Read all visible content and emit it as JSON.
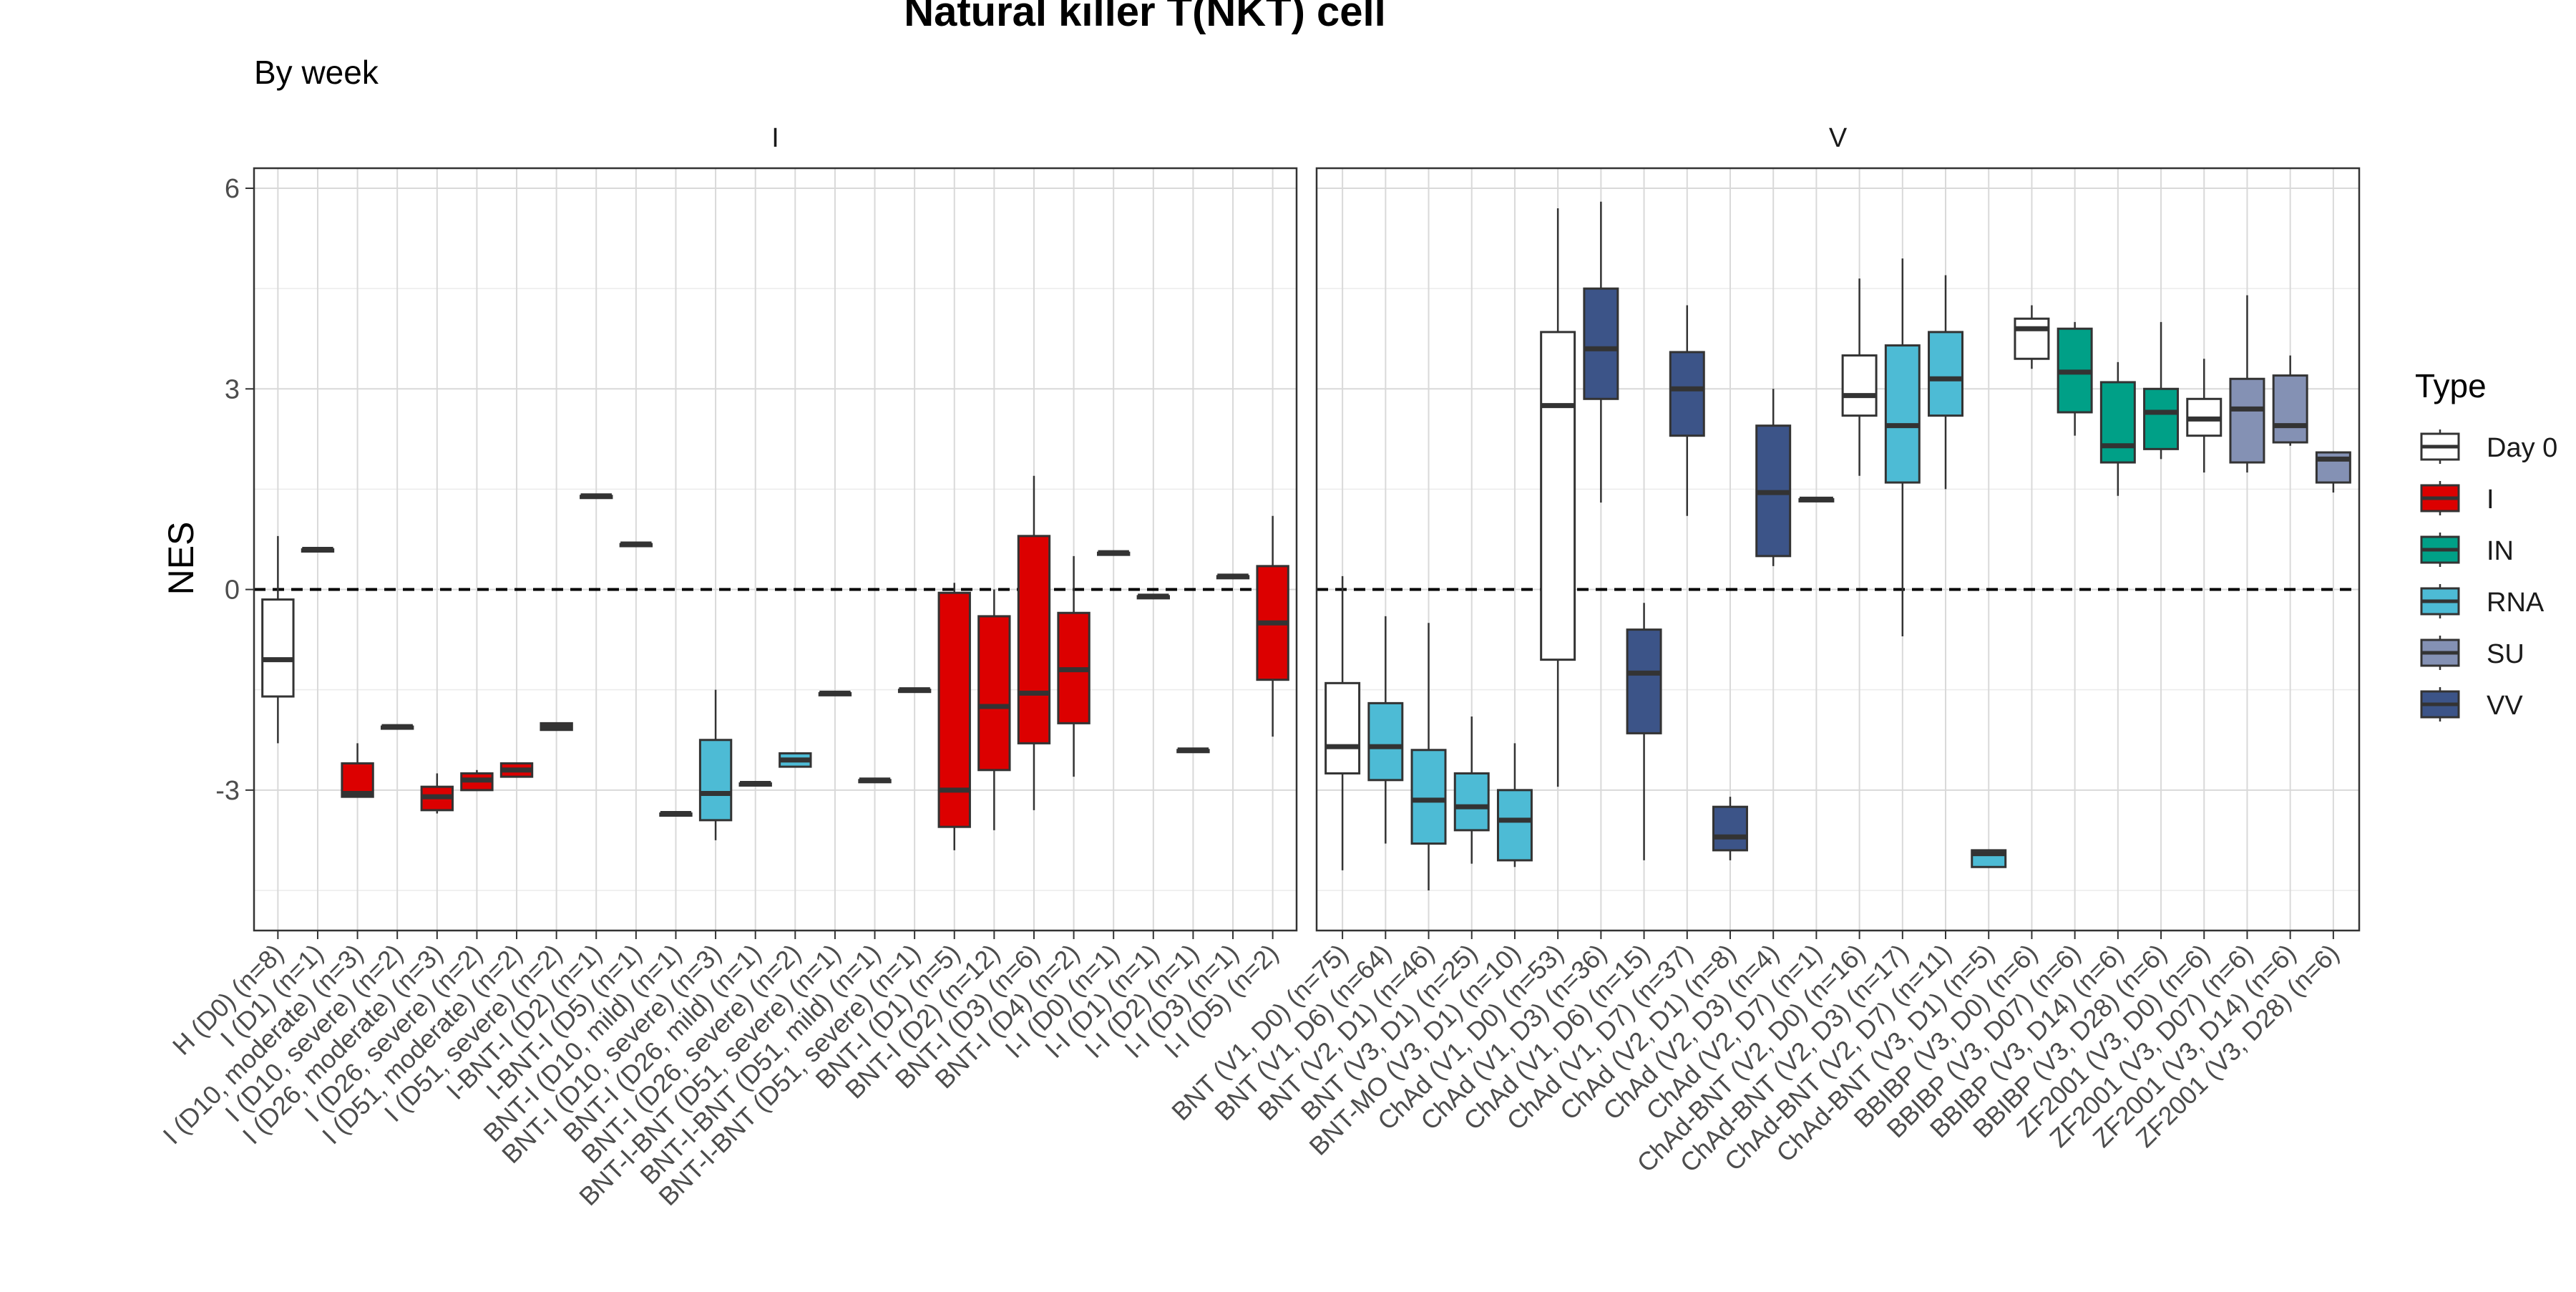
{
  "chart_data": {
    "type": "box",
    "title": "Natural killer T(NKT) cell",
    "subtitle": "By week",
    "ylabel": "NES",
    "xlabel": "",
    "ylim": [
      -5.1,
      6.3
    ],
    "yticks": [
      6,
      3,
      0,
      -3
    ],
    "yticklabels": [
      "6",
      "3",
      "0",
      "-3"
    ],
    "reference_line": 0,
    "grid": true,
    "legend": {
      "title": "Type",
      "position": "right",
      "items": [
        {
          "label": "Day 0",
          "color": "#ffffff"
        },
        {
          "label": "I",
          "color": "#dc0000"
        },
        {
          "label": "IN",
          "color": "#00a087"
        },
        {
          "label": "RNA",
          "color": "#4dbbd5"
        },
        {
          "label": "SU",
          "color": "#8491b4"
        },
        {
          "label": "VV",
          "color": "#3c5488"
        }
      ]
    },
    "panels": [
      {
        "name": "I",
        "boxes": [
          {
            "label": "H (D0) (n=8)",
            "type": "Day 0",
            "q1": -1.6,
            "median": -1.05,
            "q3": -0.15,
            "lo": -2.3,
            "hi": 0.8
          },
          {
            "label": "I (D1) (n=1)",
            "type": "I",
            "q1": 0.6,
            "median": 0.6,
            "q3": 0.6,
            "lo": 0.6,
            "hi": 0.6
          },
          {
            "label": "I (D10, moderate) (n=3)",
            "type": "I",
            "q1": -3.1,
            "median": -3.05,
            "q3": -2.6,
            "lo": -3.1,
            "hi": -2.3
          },
          {
            "label": "I (D10, severe) (n=2)",
            "type": "I",
            "q1": -2.05,
            "median": -2.05,
            "q3": -2.05,
            "lo": -2.05,
            "hi": -2.05
          },
          {
            "label": "I (D26, moderate) (n=3)",
            "type": "I",
            "q1": -3.3,
            "median": -3.1,
            "q3": -2.95,
            "lo": -3.35,
            "hi": -2.75
          },
          {
            "label": "I (D26, severe) (n=2)",
            "type": "I",
            "q1": -3.0,
            "median": -2.85,
            "q3": -2.75,
            "lo": -3.0,
            "hi": -2.7
          },
          {
            "label": "I (D51, moderate) (n=2)",
            "type": "I",
            "q1": -2.8,
            "median": -2.7,
            "q3": -2.6,
            "lo": -2.8,
            "hi": -2.6
          },
          {
            "label": "I (D51, severe) (n=2)",
            "type": "I",
            "q1": -2.1,
            "median": -2.05,
            "q3": -2.0,
            "lo": -2.1,
            "hi": -2.0
          },
          {
            "label": "I-BNT-I (D2) (n=1)",
            "type": "I",
            "q1": 1.4,
            "median": 1.4,
            "q3": 1.4,
            "lo": 1.4,
            "hi": 1.4
          },
          {
            "label": "I-BNT-I (D5) (n=1)",
            "type": "I",
            "q1": 0.68,
            "median": 0.68,
            "q3": 0.68,
            "lo": 0.68,
            "hi": 0.68
          },
          {
            "label": "BNT-I (D10, mild) (n=1)",
            "type": "RNA",
            "q1": -3.35,
            "median": -3.35,
            "q3": -3.35,
            "lo": -3.35,
            "hi": -3.35
          },
          {
            "label": "BNT-I (D10, severe) (n=3)",
            "type": "RNA",
            "q1": -3.45,
            "median": -3.05,
            "q3": -2.25,
            "lo": -3.75,
            "hi": -1.5
          },
          {
            "label": "BNT-I (D26, mild) (n=1)",
            "type": "RNA",
            "q1": -2.9,
            "median": -2.9,
            "q3": -2.9,
            "lo": -2.9,
            "hi": -2.9
          },
          {
            "label": "BNT-I (D26, severe) (n=2)",
            "type": "RNA",
            "q1": -2.65,
            "median": -2.55,
            "q3": -2.45,
            "lo": -2.65,
            "hi": -2.45
          },
          {
            "label": "BNT-I-BNT (D51, severe) (n=1)",
            "type": "RNA",
            "q1": -1.55,
            "median": -1.55,
            "q3": -1.55,
            "lo": -1.55,
            "hi": -1.55
          },
          {
            "label": "BNT-I-BNT (D51, mild) (n=1)",
            "type": "RNA",
            "q1": -2.85,
            "median": -2.85,
            "q3": -2.85,
            "lo": -2.85,
            "hi": -2.85
          },
          {
            "label": "BNT-I-BNT (D51, severe) (n=1)",
            "type": "RNA",
            "q1": -1.5,
            "median": -1.5,
            "q3": -1.5,
            "lo": -1.5,
            "hi": -1.5
          },
          {
            "label": "BNT-I (D1) (n=5)",
            "type": "I",
            "q1": -3.55,
            "median": -3.0,
            "q3": -0.05,
            "lo": -3.9,
            "hi": 0.1
          },
          {
            "label": "BNT-I (D2) (n=12)",
            "type": "I",
            "q1": -2.7,
            "median": -1.75,
            "q3": -0.4,
            "lo": -3.6,
            "hi": 0.0
          },
          {
            "label": "BNT-I (D3) (n=6)",
            "type": "I",
            "q1": -2.3,
            "median": -1.55,
            "q3": 0.8,
            "lo": -3.3,
            "hi": 1.7
          },
          {
            "label": "BNT-I (D4) (n=2)",
            "type": "I",
            "q1": -2.0,
            "median": -1.2,
            "q3": -0.35,
            "lo": -2.8,
            "hi": 0.5
          },
          {
            "label": "I-I (D0) (n=1)",
            "type": "I",
            "q1": 0.55,
            "median": 0.55,
            "q3": 0.55,
            "lo": 0.55,
            "hi": 0.55
          },
          {
            "label": "I-I (D1) (n=1)",
            "type": "I",
            "q1": -0.1,
            "median": -0.1,
            "q3": -0.1,
            "lo": -0.1,
            "hi": -0.1
          },
          {
            "label": "I-I (D2) (n=1)",
            "type": "I",
            "q1": -2.4,
            "median": -2.4,
            "q3": -2.4,
            "lo": -2.4,
            "hi": -2.4
          },
          {
            "label": "I-I (D3) (n=1)",
            "type": "I",
            "q1": 0.2,
            "median": 0.2,
            "q3": 0.2,
            "lo": 0.2,
            "hi": 0.2
          },
          {
            "label": "I-I (D5) (n=2)",
            "type": "I",
            "q1": -1.35,
            "median": -0.5,
            "q3": 0.35,
            "lo": -2.2,
            "hi": 1.1
          }
        ]
      },
      {
        "name": "V",
        "boxes": [
          {
            "label": "BNT (V1, D0) (n=75)",
            "type": "Day 0",
            "q1": -2.75,
            "median": -2.35,
            "q3": -1.4,
            "lo": -4.2,
            "hi": 0.2
          },
          {
            "label": "BNT (V1, D6) (n=64)",
            "type": "RNA",
            "q1": -2.85,
            "median": -2.35,
            "q3": -1.7,
            "lo": -3.8,
            "hi": -0.4
          },
          {
            "label": "BNT (V2, D1) (n=46)",
            "type": "RNA",
            "q1": -3.8,
            "median": -3.15,
            "q3": -2.4,
            "lo": -4.5,
            "hi": -0.5
          },
          {
            "label": "BNT (V3, D1) (n=25)",
            "type": "RNA",
            "q1": -3.6,
            "median": -3.25,
            "q3": -2.75,
            "lo": -4.1,
            "hi": -1.9
          },
          {
            "label": "BNT-MO (V3, D1) (n=10)",
            "type": "RNA",
            "q1": -4.05,
            "median": -3.45,
            "q3": -3.0,
            "lo": -4.15,
            "hi": -2.3
          },
          {
            "label": "ChAd (V1, D0) (n=53)",
            "type": "Day 0",
            "q1": -1.05,
            "median": 2.75,
            "q3": 3.85,
            "lo": -2.95,
            "hi": 5.7
          },
          {
            "label": "ChAd (V1, D3) (n=36)",
            "type": "VV",
            "q1": 2.85,
            "median": 3.6,
            "q3": 4.5,
            "lo": 1.3,
            "hi": 5.8
          },
          {
            "label": "ChAd (V1, D6) (n=15)",
            "type": "VV",
            "q1": -2.15,
            "median": -1.25,
            "q3": -0.6,
            "lo": -4.05,
            "hi": -0.2
          },
          {
            "label": "ChAd (V1, D7) (n=37)",
            "type": "VV",
            "q1": 2.3,
            "median": 3.0,
            "q3": 3.55,
            "lo": 1.1,
            "hi": 4.25
          },
          {
            "label": "ChAd (V2, D1) (n=8)",
            "type": "VV",
            "q1": -3.9,
            "median": -3.7,
            "q3": -3.25,
            "lo": -4.05,
            "hi": -3.1
          },
          {
            "label": "ChAd (V2, D3) (n=4)",
            "type": "VV",
            "q1": 0.5,
            "median": 1.45,
            "q3": 2.45,
            "lo": 0.35,
            "hi": 3.0
          },
          {
            "label": "ChAd (V2, D7) (n=1)",
            "type": "VV",
            "q1": 1.35,
            "median": 1.35,
            "q3": 1.35,
            "lo": 1.35,
            "hi": 1.35
          },
          {
            "label": "ChAd-BNT (V2, D0) (n=16)",
            "type": "Day 0",
            "q1": 2.6,
            "median": 2.9,
            "q3": 3.5,
            "lo": 1.7,
            "hi": 4.65
          },
          {
            "label": "ChAd-BNT (V2, D3) (n=17)",
            "type": "RNA",
            "q1": 1.6,
            "median": 2.45,
            "q3": 3.65,
            "lo": -0.7,
            "hi": 4.95
          },
          {
            "label": "ChAd-BNT (V2, D7) (n=11)",
            "type": "RNA",
            "q1": 2.6,
            "median": 3.15,
            "q3": 3.85,
            "lo": 1.5,
            "hi": 4.7
          },
          {
            "label": "ChAd-BNT (V3, D1) (n=5)",
            "type": "RNA",
            "q1": -4.15,
            "median": -3.95,
            "q3": -3.9,
            "lo": -4.15,
            "hi": -3.9
          },
          {
            "label": "BBIBP (V3, D0) (n=6)",
            "type": "Day 0",
            "q1": 3.45,
            "median": 3.9,
            "q3": 4.05,
            "lo": 3.3,
            "hi": 4.25
          },
          {
            "label": "BBIBP (V3, D07) (n=6)",
            "type": "IN",
            "q1": 2.65,
            "median": 3.25,
            "q3": 3.9,
            "lo": 2.3,
            "hi": 4.0
          },
          {
            "label": "BBIBP (V3, D14) (n=6)",
            "type": "IN",
            "q1": 1.9,
            "median": 2.15,
            "q3": 3.1,
            "lo": 1.4,
            "hi": 3.4
          },
          {
            "label": "BBIBP (V3, D28) (n=6)",
            "type": "IN",
            "q1": 2.1,
            "median": 2.65,
            "q3": 3.0,
            "lo": 1.95,
            "hi": 4.0
          },
          {
            "label": "ZF2001 (V3, D0) (n=6)",
            "type": "Day 0",
            "q1": 2.3,
            "median": 2.55,
            "q3": 2.85,
            "lo": 1.75,
            "hi": 3.45
          },
          {
            "label": "ZF2001 (V3, D07) (n=6)",
            "type": "SU",
            "q1": 1.9,
            "median": 2.7,
            "q3": 3.15,
            "lo": 1.75,
            "hi": 4.4
          },
          {
            "label": "ZF2001 (V3, D14) (n=6)",
            "type": "SU",
            "q1": 2.2,
            "median": 2.45,
            "q3": 3.2,
            "lo": 2.15,
            "hi": 3.5
          },
          {
            "label": "ZF2001 (V3, D28) (n=6)",
            "type": "SU",
            "q1": 1.6,
            "median": 1.95,
            "q3": 2.05,
            "lo": 1.45,
            "hi": 2.05
          }
        ]
      }
    ]
  }
}
